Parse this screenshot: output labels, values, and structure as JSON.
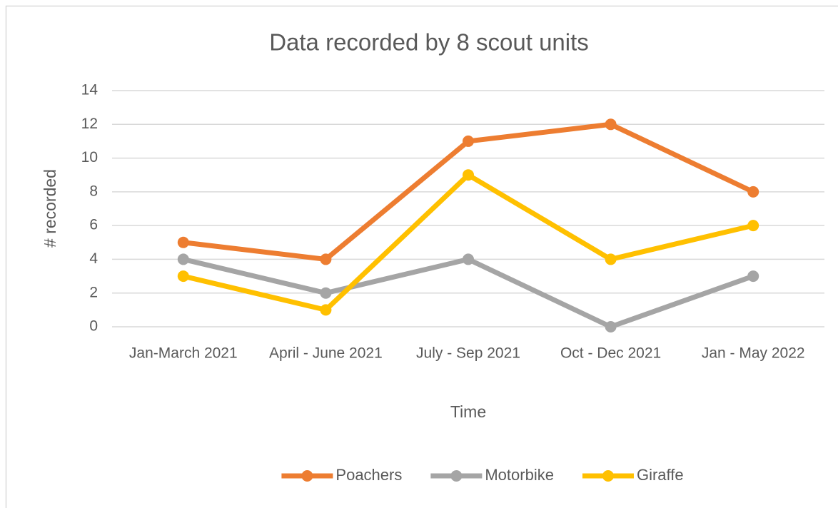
{
  "chart_data": {
    "type": "line",
    "title": "Data recorded by 8 scout units",
    "x_label": "Time",
    "y_label": "# recorded",
    "categories": [
      "Jan-March 2021",
      "April - June 2021",
      "July - Sep 2021",
      "Oct - Dec 2021",
      "Jan - May 2022"
    ],
    "series": [
      {
        "name": "Poachers",
        "color": "#ed7d31",
        "values": [
          5,
          4,
          11,
          12,
          8
        ]
      },
      {
        "name": "Motorbike",
        "color": "#a5a5a5",
        "values": [
          4,
          2,
          4,
          0,
          3
        ]
      },
      {
        "name": "Giraffe",
        "color": "#ffc000",
        "values": [
          3,
          1,
          9,
          4,
          6
        ]
      }
    ],
    "ylim": [
      0,
      14
    ],
    "yticks": [
      0,
      2,
      4,
      6,
      8,
      10,
      12,
      14
    ],
    "grid": true,
    "legend": "bottom"
  }
}
